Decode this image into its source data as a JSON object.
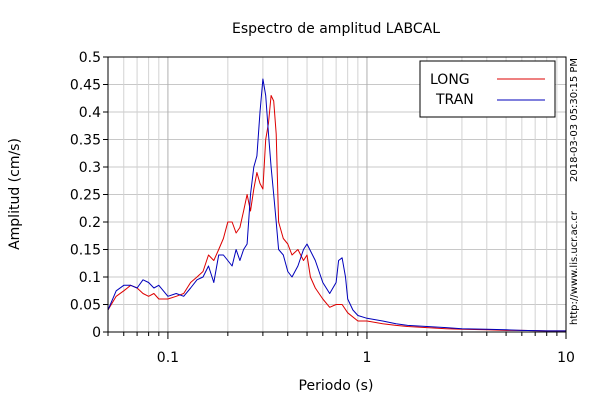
{
  "chart_data": {
    "type": "line",
    "title": "Espectro de amplitud LABCAL",
    "xlabel": "Periodo (s)",
    "ylabel": "Amplitud (cm/s)",
    "xscale": "log",
    "xlim": [
      0.05,
      10
    ],
    "ylim": [
      0,
      0.5
    ],
    "x_ticks": [
      0.1,
      1,
      10
    ],
    "x_tick_labels": [
      "0.1",
      "1",
      "10"
    ],
    "y_ticks": [
      0,
      0.05,
      0.1,
      0.15,
      0.2,
      0.25,
      0.3,
      0.35,
      0.4,
      0.45,
      0.5
    ],
    "y_tick_labels": [
      "0",
      "0.05",
      "0.1",
      "0.15",
      "0.2",
      "0.25",
      "0.3",
      "0.35",
      "0.4",
      "0.45",
      "0.5"
    ],
    "grid": true,
    "legend_position": "top-right",
    "side_text_1": "2018-03-03 05:30:15 PM",
    "side_text_2": "http://www.lis.ucr.ac.cr",
    "series": [
      {
        "name": "LONG",
        "color": "#dd0000",
        "x": [
          0.05,
          0.055,
          0.06,
          0.065,
          0.07,
          0.075,
          0.08,
          0.085,
          0.09,
          0.1,
          0.11,
          0.12,
          0.13,
          0.14,
          0.15,
          0.16,
          0.17,
          0.18,
          0.19,
          0.2,
          0.21,
          0.22,
          0.23,
          0.24,
          0.25,
          0.26,
          0.27,
          0.28,
          0.29,
          0.3,
          0.31,
          0.32,
          0.33,
          0.34,
          0.35,
          0.36,
          0.38,
          0.4,
          0.42,
          0.45,
          0.48,
          0.5,
          0.52,
          0.55,
          0.6,
          0.65,
          0.7,
          0.75,
          0.8,
          0.9,
          1.0,
          1.2,
          1.4,
          1.6,
          2.0,
          2.5,
          3.0,
          4.0,
          5.0,
          6.0,
          8.0,
          10.0
        ],
        "values": [
          0.04,
          0.065,
          0.075,
          0.085,
          0.08,
          0.07,
          0.065,
          0.07,
          0.06,
          0.06,
          0.065,
          0.07,
          0.09,
          0.1,
          0.11,
          0.14,
          0.13,
          0.15,
          0.17,
          0.2,
          0.2,
          0.18,
          0.19,
          0.22,
          0.25,
          0.22,
          0.26,
          0.29,
          0.27,
          0.26,
          0.35,
          0.38,
          0.43,
          0.42,
          0.36,
          0.2,
          0.17,
          0.16,
          0.14,
          0.15,
          0.13,
          0.14,
          0.1,
          0.08,
          0.06,
          0.045,
          0.05,
          0.05,
          0.035,
          0.02,
          0.02,
          0.015,
          0.012,
          0.01,
          0.008,
          0.006,
          0.005,
          0.004,
          0.003,
          0.003,
          0.002,
          0.002
        ]
      },
      {
        "name": "TRAN",
        "color": "#0000bb",
        "x": [
          0.05,
          0.055,
          0.06,
          0.065,
          0.07,
          0.075,
          0.08,
          0.085,
          0.09,
          0.1,
          0.11,
          0.12,
          0.13,
          0.14,
          0.15,
          0.16,
          0.17,
          0.18,
          0.19,
          0.2,
          0.21,
          0.22,
          0.23,
          0.24,
          0.25,
          0.26,
          0.27,
          0.28,
          0.29,
          0.3,
          0.31,
          0.32,
          0.33,
          0.34,
          0.35,
          0.36,
          0.38,
          0.4,
          0.42,
          0.45,
          0.48,
          0.5,
          0.55,
          0.6,
          0.65,
          0.7,
          0.72,
          0.75,
          0.78,
          0.8,
          0.85,
          0.9,
          1.0,
          1.2,
          1.4,
          1.6,
          2.0,
          2.5,
          3.0,
          4.0,
          5.0,
          6.0,
          8.0,
          10.0
        ],
        "values": [
          0.04,
          0.075,
          0.085,
          0.085,
          0.08,
          0.095,
          0.09,
          0.08,
          0.085,
          0.065,
          0.07,
          0.065,
          0.08,
          0.095,
          0.1,
          0.12,
          0.09,
          0.14,
          0.14,
          0.13,
          0.12,
          0.15,
          0.13,
          0.15,
          0.16,
          0.25,
          0.3,
          0.32,
          0.4,
          0.46,
          0.43,
          0.36,
          0.3,
          0.25,
          0.2,
          0.15,
          0.14,
          0.11,
          0.1,
          0.12,
          0.15,
          0.16,
          0.13,
          0.09,
          0.07,
          0.09,
          0.13,
          0.135,
          0.1,
          0.06,
          0.04,
          0.03,
          0.025,
          0.02,
          0.015,
          0.012,
          0.01,
          0.008,
          0.006,
          0.005,
          0.004,
          0.003,
          0.002,
          0.002
        ]
      }
    ]
  }
}
